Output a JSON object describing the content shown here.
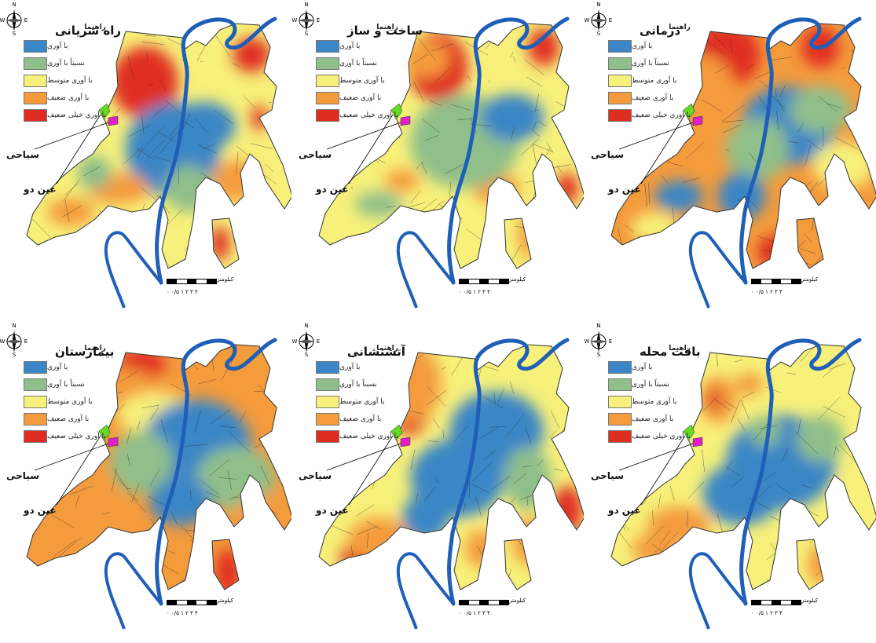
{
  "legend": {
    "title": "راهنما",
    "classes": [
      {
        "label": "با آوری",
        "color": "#3b86c6"
      },
      {
        "label": "نسبتاً با آوری",
        "color": "#8fbf8a"
      },
      {
        "label": "با آوری متوسط",
        "color": "#f7f07a"
      },
      {
        "label": "با آوری ضعیف",
        "color": "#f49b3c"
      },
      {
        "label": "با آوری خیلی ضعیف",
        "color": "#e02d22"
      }
    ]
  },
  "places": {
    "siahi": "سیاحی",
    "eyndo": "عین دو"
  },
  "compass": {
    "n": "N",
    "s": "S",
    "e": "E",
    "w": "W"
  },
  "scale": {
    "unit": "کیلومتر",
    "ticks": "۰ ۰/۵ ۱   ۲   ۳   ۴"
  },
  "maps": [
    {
      "title": "راه شریانی",
      "pattern": "roads"
    },
    {
      "title": "ساخت و ساز",
      "pattern": "construction"
    },
    {
      "title": "درمانی",
      "pattern": "medical"
    },
    {
      "title": "بیمارستان",
      "pattern": "hospital"
    },
    {
      "title": "آتشنشانی",
      "pattern": "fire"
    },
    {
      "title": "بافت محله",
      "pattern": "fabric"
    }
  ]
}
